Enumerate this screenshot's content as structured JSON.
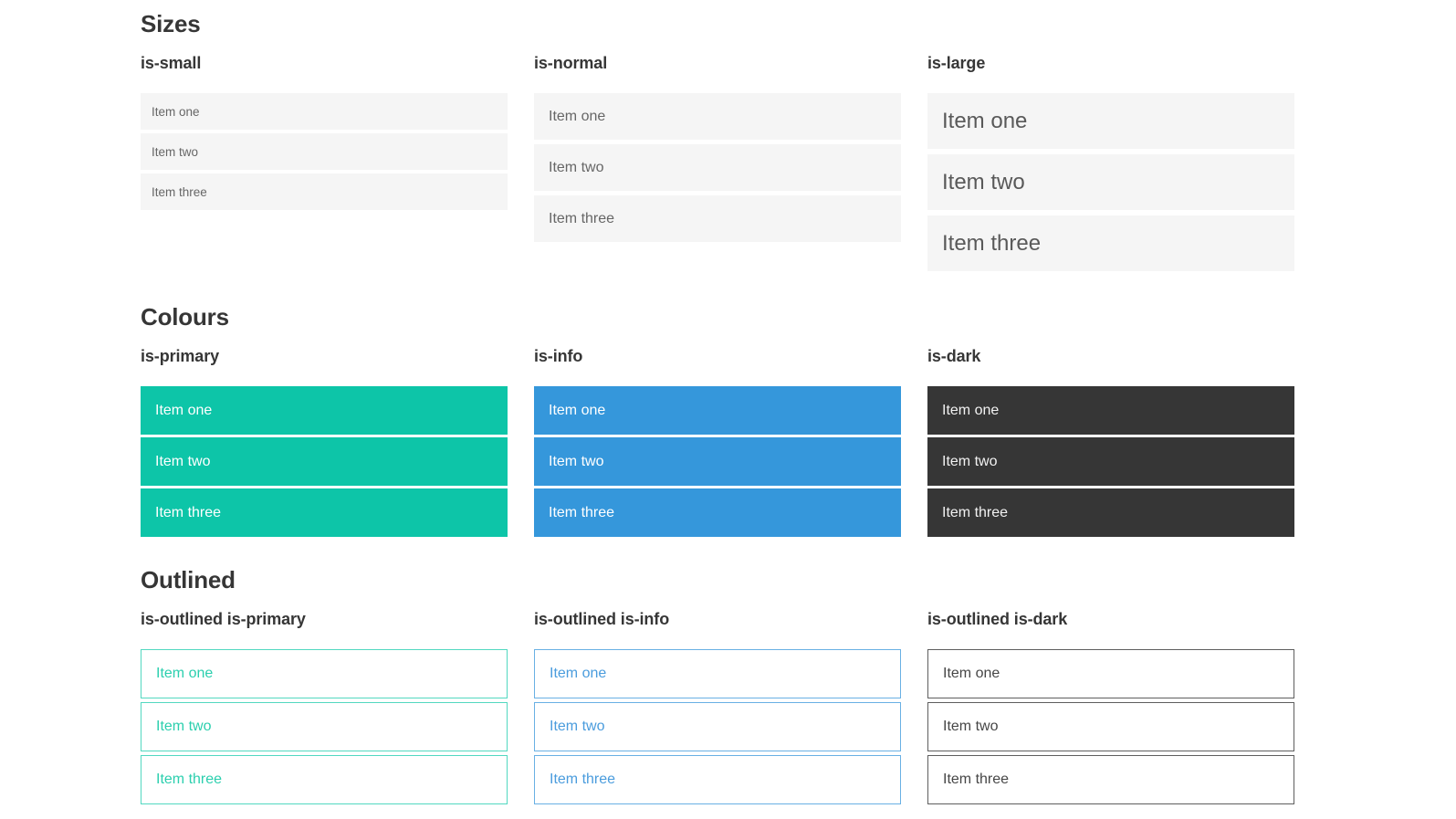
{
  "theme": {
    "primary": "#0dc5a8",
    "info": "#3597db",
    "dark": "#363636",
    "light_bg": "#f5f5f5",
    "heading_text": "#363636",
    "muted_text": "#666666",
    "on_color_text": "#ffffff",
    "on_dark_text": "#f2f2f2",
    "outlined_primary_border": "#52d8c0",
    "outlined_primary_text": "#2bcfae",
    "outlined_info_border": "#69b0e4",
    "outlined_info_text": "#4a9cdd",
    "outlined_dark_border": "#5e5e5e",
    "outlined_dark_text": "#464646"
  },
  "sections": [
    {
      "title": "Sizes",
      "groups": [
        {
          "label": "is-small",
          "items": [
            "Item one",
            "Item two",
            "Item three"
          ]
        },
        {
          "label": "is-normal",
          "items": [
            "Item one",
            "Item two",
            "Item three"
          ]
        },
        {
          "label": "is-large",
          "items": [
            "Item one",
            "Item two",
            "Item three"
          ]
        }
      ]
    },
    {
      "title": "Colours",
      "groups": [
        {
          "label": "is-primary",
          "items": [
            "Item one",
            "Item two",
            "Item three"
          ]
        },
        {
          "label": "is-info",
          "items": [
            "Item one",
            "Item two",
            "Item three"
          ]
        },
        {
          "label": "is-dark",
          "items": [
            "Item one",
            "Item two",
            "Item three"
          ]
        }
      ]
    },
    {
      "title": "Outlined",
      "groups": [
        {
          "label": "is-outlined is-primary",
          "items": [
            "Item one",
            "Item two",
            "Item three"
          ]
        },
        {
          "label": "is-outlined is-info",
          "items": [
            "Item one",
            "Item two",
            "Item three"
          ]
        },
        {
          "label": "is-outlined is-dark",
          "items": [
            "Item one",
            "Item two",
            "Item three"
          ]
        }
      ]
    }
  ]
}
